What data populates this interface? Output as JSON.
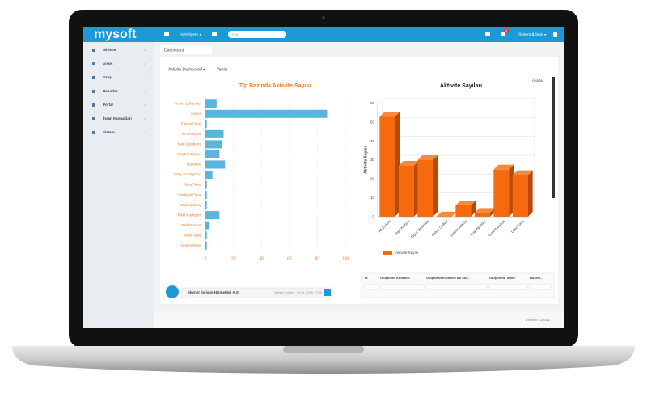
{
  "header": {
    "logo": "mysoft",
    "quick_menu": "Hızlı İşlem ▾",
    "search_placeholder": "Ara...",
    "badge": "4",
    "user": "Sistem Admin ▾"
  },
  "sidebar": {
    "items": [
      "Aktivite",
      "Anket",
      "Satış",
      "Raporlar",
      "Portal",
      "İnsan Kaynakları",
      "Sistem"
    ]
  },
  "tab": "Dashboard",
  "toolbar": {
    "dashboard_menu": "Aktivite Dashboard ▾",
    "refresh": "Yenile"
  },
  "chart_data": [
    {
      "type": "hbar",
      "title": "Tip Bazında Aktivite Sayısı",
      "color": "#5ab4dc",
      "title_color": "#f07a2a",
      "categories": [
        "Anket Çalışması",
        "Arama",
        "Fatura Onay",
        "Ilk Görüşme",
        "Mail Gönderim",
        "Müşteri Ziyaret",
        "Randevu",
        "Satış Sözleşmesi",
        "Satış Takip",
        "Sevkiyat Onay",
        "Sipariş Onay",
        "Teklif Paylaşım",
        "Teklif Revize",
        "Teklif Takip",
        "Üretim Onay"
      ],
      "values": [
        8,
        87,
        1,
        13,
        12,
        10,
        14,
        5,
        1,
        1,
        1,
        10,
        3,
        1,
        1
      ],
      "xlim": [
        0,
        100
      ],
      "xticks": [
        0,
        20,
        40,
        60,
        80,
        100
      ],
      "grid": true
    },
    {
      "type": "bar3d",
      "title": "Aktivite Sayıları",
      "y_label": "Aktivite Sayısı",
      "settings": "Ayarlar",
      "color": "#f56a0e",
      "categories": [
        "Ali Erdem",
        "Halil Kurtulu",
        "Oğuz Bekircan",
        "Oytun Gülker",
        "Sistem Admin",
        "Suat Ayaslan",
        "Tarık Karakuş",
        "Utku Tuna"
      ],
      "series": [
        {
          "name": "Aktivite Sayısı",
          "color": "#f56a0e",
          "values": [
            53,
            27,
            30,
            0,
            6,
            2,
            25,
            22
          ]
        }
      ],
      "ylim": [
        0,
        60
      ],
      "yticks": [
        0,
        10,
        20,
        30,
        40,
        50,
        60
      ],
      "grid": true
    }
  ],
  "table": {
    "headers": [
      "Id",
      "Oluşturan Kullanıcı",
      "Oluşturan Kullanıcı Ad Soy...",
      "Oluşturma Tarihi",
      "Düzenl..."
    ]
  },
  "notice": {
    "title": "Skynet İletişim Hizmetleri A.Ş.",
    "meta": "Sistem Admin - 04.01.2019 17:55"
  },
  "footer": {
    "version": "Version 03.012"
  }
}
